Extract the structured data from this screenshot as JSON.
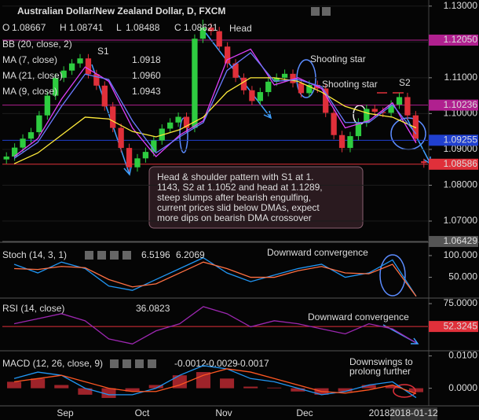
{
  "chart_data": [
    {
      "type": "candlestick",
      "title": "Australian Dollar/New Zealand Dollar, D, FXCM",
      "ohlc_labels": [
        "O",
        "H",
        "L",
        "C"
      ],
      "head_label": "Head",
      "up_color": "#2ecc40",
      "down_color": "#e0303a",
      "candles": [
        [
          1.0872,
          1.0892,
          1.086,
          1.088
        ],
        [
          1.088,
          1.0917,
          1.0868,
          1.0905
        ],
        [
          1.0905,
          1.0942,
          1.0893,
          1.093
        ],
        [
          1.093,
          1.096,
          1.0918,
          1.0948
        ],
        [
          1.0948,
          1.1007,
          1.0936,
          1.0995
        ],
        [
          1.0995,
          1.1062,
          1.0983,
          1.105
        ],
        [
          1.105,
          1.1112,
          1.1038,
          1.11
        ],
        [
          1.11,
          1.1132,
          1.1088,
          1.112
        ],
        [
          1.112,
          1.1152,
          1.1108,
          1.114
        ],
        [
          1.114,
          1.1166,
          1.1128,
          1.1154
        ],
        [
          1.1154,
          1.1166,
          1.1098,
          1.111
        ],
        [
          1.111,
          1.1122,
          1.1066,
          1.1078
        ],
        [
          1.1078,
          1.109,
          1.1008,
          1.102
        ],
        [
          1.102,
          1.1032,
          1.0948,
          1.096
        ],
        [
          1.096,
          1.0972,
          1.0892,
          1.0904
        ],
        [
          1.0904,
          1.0916,
          1.0838,
          1.085
        ],
        [
          1.085,
          1.0887,
          1.0838,
          1.0875
        ],
        [
          1.0875,
          1.0905,
          1.0863,
          1.0893
        ],
        [
          1.0893,
          1.0937,
          1.0881,
          1.0925
        ],
        [
          1.0925,
          1.097,
          1.0913,
          1.0958
        ],
        [
          1.0958,
          1.0987,
          1.0946,
          1.0975
        ],
        [
          1.0975,
          1.1003,
          1.0963,
          1.0991
        ],
        [
          1.0991,
          1.1003,
          1.0948,
          1.096
        ],
        [
          1.096,
          1.1221,
          1.0948,
          1.1209
        ],
        [
          1.1209,
          1.1262,
          1.1197,
          1.124
        ],
        [
          1.124,
          1.1252,
          1.1218,
          1.123
        ],
        [
          1.123,
          1.1242,
          1.1175,
          1.1187
        ],
        [
          1.1187,
          1.1199,
          1.1128,
          1.114
        ],
        [
          1.114,
          1.1152,
          1.1088,
          1.11
        ],
        [
          1.11,
          1.1112,
          1.1053,
          1.1065
        ],
        [
          1.1065,
          1.1077,
          1.1023,
          1.1035
        ],
        [
          1.1035,
          1.1072,
          1.1023,
          1.106
        ],
        [
          1.106,
          1.1101,
          1.1048,
          1.1089
        ],
        [
          1.1089,
          1.1112,
          1.1077,
          1.11
        ],
        [
          1.11,
          1.1123,
          1.1088,
          1.1111
        ],
        [
          1.1111,
          1.1123,
          1.1073,
          1.1085
        ],
        [
          1.1085,
          1.1097,
          1.1045,
          1.1057
        ],
        [
          1.1057,
          1.1092,
          1.1045,
          1.108
        ],
        [
          1.108,
          1.1092,
          1.1058,
          1.107
        ],
        [
          1.107,
          1.1082,
          1.099,
          1.1002
        ],
        [
          1.1002,
          1.1014,
          1.0928,
          1.094
        ],
        [
          1.094,
          1.0952,
          1.0892,
          1.0904
        ],
        [
          1.0904,
          1.0949,
          1.0892,
          1.0937
        ],
        [
          1.0937,
          1.0987,
          1.0925,
          1.0975
        ],
        [
          1.0975,
          1.1025,
          1.0963,
          1.1013
        ],
        [
          1.1013,
          1.1025,
          1.0993,
          1.1005
        ],
        [
          1.1005,
          1.1017,
          1.099,
          1.1002
        ],
        [
          1.1002,
          1.1037,
          1.099,
          1.1025
        ],
        [
          1.1025,
          1.1058,
          1.1013,
          1.1046
        ],
        [
          1.1046,
          1.1058,
          1.0983,
          1.0995
        ],
        [
          1.0995,
          1.1007,
          1.0918,
          1.093
        ],
        [
          1.08667,
          1.08741,
          1.08488,
          1.08621
        ]
      ],
      "bb_label": "BB (20, close, 2)",
      "series": [
        {
          "name": "MA (7, close)",
          "last": "1.0918",
          "color": "#e040fb",
          "values": [
            1.088,
            1.093,
            1.104,
            1.113,
            1.109,
            1.096,
            1.088,
            1.094,
            1.098,
            1.115,
            1.118,
            1.108,
            1.11,
            1.107,
            1.096,
            1.098,
            1.103,
            1.0918
          ]
        },
        {
          "name": "MA (21, close)",
          "last": "1.0960",
          "color": "#ffeb3b",
          "values": [
            1.086,
            1.089,
            1.094,
            1.099,
            1.0985,
            1.095,
            1.0935,
            1.0955,
            1.099,
            1.106,
            1.11,
            1.11,
            1.109,
            1.106,
            1.102,
            1.1,
            1.099,
            1.096
          ]
        },
        {
          "name": "MA (9, close)",
          "last": "1.0943",
          "color": "#6a7bff",
          "values": [
            1.0875,
            1.092,
            1.102,
            1.111,
            1.1095,
            1.098,
            1.089,
            1.0935,
            1.0975,
            1.112,
            1.117,
            1.109,
            1.1095,
            1.1075,
            1.0975,
            1.0975,
            1.1025,
            1.0943
          ]
        }
      ],
      "ylim": [
        1.0643,
        1.1317
      ],
      "yticks": [
        {
          "value": 1.13,
          "label": "1.13000"
        },
        {
          "value": 1.12,
          "label": "1.12000"
        },
        {
          "value": 1.11,
          "label": "1.11000"
        },
        {
          "value": 1.1,
          "label": "1.10000"
        },
        {
          "value": 1.09,
          "label": "1.09000"
        },
        {
          "value": 1.08,
          "label": "1.08000"
        },
        {
          "value": 1.07,
          "label": "1.07000"
        }
      ],
      "levels": [
        {
          "value": 1.1205,
          "label": "1.12050",
          "color": "#b0208f"
        },
        {
          "value": 1.10236,
          "label": "1.10236",
          "color": "#b0208f"
        },
        {
          "value": 1.09255,
          "label": "1.09255",
          "color": "#2040d0"
        },
        {
          "value": 1.08586,
          "label": "1.08586",
          "color": "#e0303a"
        },
        {
          "value": 1.06429,
          "label": "1.06429",
          "color": "#555555"
        }
      ],
      "annotations": [
        "S1",
        "Shooting star",
        "Shooting star",
        "S2"
      ],
      "note": [
        "Head & shoulder pattern with S1 at 1.",
        "1143, S2 at 1.1052 and head at 1.1289,",
        "steep slumps after bearish engulfing,",
        "current prices slid below DMAs, expect",
        "more dips on bearish DMA crossover"
      ]
    },
    {
      "type": "line",
      "title": "Stoch (14, 3, 1)",
      "series": [
        {
          "color": "#2196f3",
          "last": "6.5196",
          "values": [
            80,
            60,
            85,
            70,
            30,
            20,
            45,
            70,
            95,
            60,
            40,
            55,
            70,
            80,
            50,
            60,
            90,
            6.5196
          ]
        },
        {
          "color": "#ff7043",
          "last": "6.2069",
          "values": [
            70,
            68,
            75,
            72,
            45,
            28,
            35,
            60,
            85,
            70,
            50,
            50,
            65,
            75,
            60,
            58,
            80,
            6.2069
          ]
        }
      ],
      "ylim": [
        4,
        127
      ],
      "yticks": [
        {
          "value": 100,
          "label": "100.000"
        },
        {
          "value": 50,
          "label": "50.000"
        }
      ],
      "levels": [],
      "annotations": [
        "Downward convergence"
      ]
    },
    {
      "type": "line",
      "title": "RSI (14, close)",
      "series": [
        {
          "color": "#9c27b0",
          "last": "36.0823",
          "values": [
            55,
            60,
            65,
            58,
            40,
            35,
            48,
            55,
            72,
            65,
            52,
            58,
            55,
            50,
            45,
            55,
            50,
            36.0823
          ]
        }
      ],
      "ylim": [
        29,
        79.7
      ],
      "yticks": [
        {
          "value": 75,
          "label": "75.0000"
        }
      ],
      "levels": [
        {
          "value": 52.3245,
          "label": "52.3245",
          "color": "#e0303a"
        }
      ],
      "annotations": [
        "Downward convergence"
      ]
    },
    {
      "type": "macd",
      "title": "MACD (12, 26, close, 9)",
      "series": [
        {
          "style": "histogram",
          "color": "#e0303a",
          "last": "-0.0012",
          "values": [
            0.002,
            0.003,
            0.001,
            -0.002,
            -0.003,
            -0.001,
            0.001,
            0.004,
            0.005,
            0.003,
            0.0005,
            0.0002,
            -0.001,
            -0.002,
            -0.001,
            0.001,
            0.0008,
            -0.0012
          ]
        },
        {
          "style": "line",
          "color": "#2196f3",
          "last": "-0.0029",
          "values": [
            0.003,
            0.005,
            0.004,
            0,
            -0.002,
            -0.002,
            0,
            0.004,
            0.007,
            0.006,
            0.003,
            0.002,
            0,
            -0.002,
            -0.001,
            0.001,
            0.002,
            -0.0029
          ]
        },
        {
          "style": "line",
          "color": "#ff5722",
          "last": "-0.0017",
          "values": [
            0.002,
            0.003,
            0.004,
            0.002,
            0,
            -0.001,
            -0.001,
            0.001,
            0.004,
            0.006,
            0.005,
            0.003,
            0.001,
            -0.001,
            -0.0015,
            -0.0005,
            0.001,
            -0.0017
          ]
        }
      ],
      "ylim": [
        -0.0052,
        0.0111
      ],
      "yticks": [
        {
          "value": 0.01,
          "label": "0.0100"
        },
        {
          "value": 0,
          "label": "0.0000"
        }
      ],
      "levels": [],
      "annotations": [
        "Downswings to",
        "prolong further"
      ]
    }
  ],
  "x_axis": {
    "labels": [
      "Sep",
      "Oct",
      "Nov",
      "Dec",
      "2018"
    ],
    "date": "2018-01-12"
  }
}
